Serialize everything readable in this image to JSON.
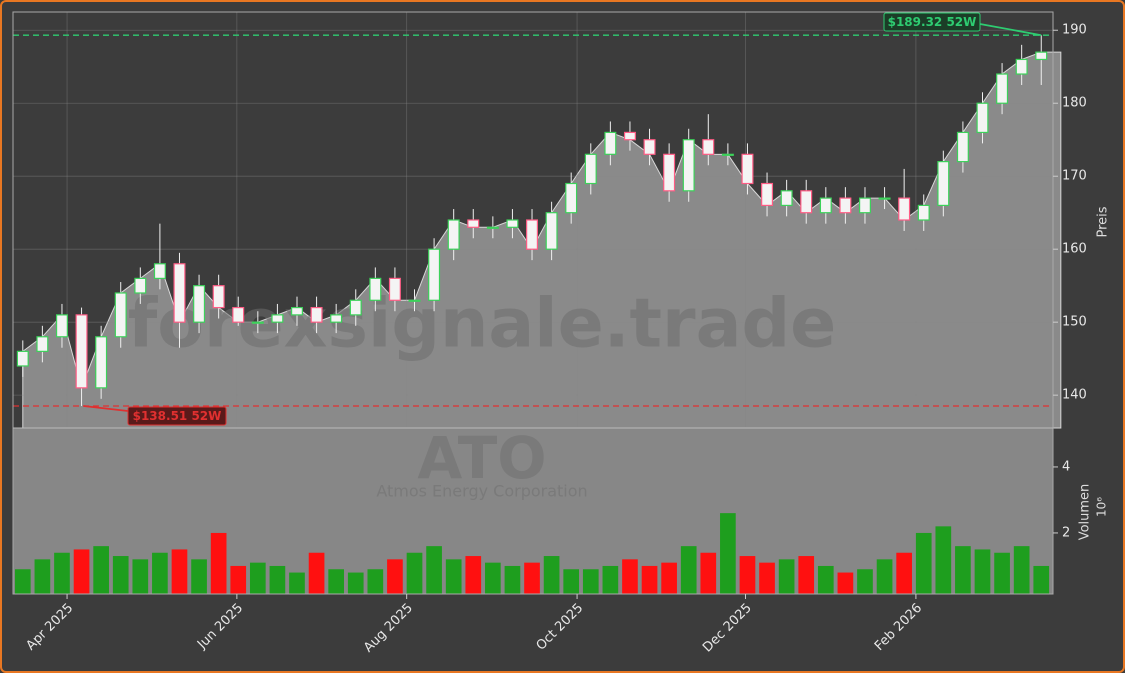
{
  "chart_data": {
    "type": "candlestick",
    "watermark": "forexsignale.trade",
    "symbol": "ATO",
    "company": "Atmos Energy Corporation",
    "ylabel": "Preis",
    "up_color": "#3cd25a",
    "down_color": "#ff5c85",
    "grid": true,
    "x": [
      0,
      1,
      2,
      3,
      4,
      5,
      6,
      7,
      8,
      9,
      10,
      11,
      12,
      13,
      14,
      15,
      16,
      17,
      18,
      19,
      20,
      21,
      22,
      23,
      24,
      25,
      26,
      27,
      28,
      29,
      30,
      31,
      32,
      33,
      34,
      35,
      36,
      37,
      38,
      39,
      40,
      41,
      42,
      43,
      44,
      45,
      46,
      47,
      48,
      49,
      50,
      51,
      52
    ],
    "xlim": [
      -0.5,
      52.6
    ],
    "xticks": [
      {
        "value": 2.26,
        "label": "Apr 2025"
      },
      {
        "value": 10.93,
        "label": "Jun 2025"
      },
      {
        "value": 19.6,
        "label": "Aug 2025"
      },
      {
        "value": 28.3,
        "label": "Oct 2025"
      },
      {
        "value": 36.9,
        "label": "Dec 2025"
      },
      {
        "value": 45.6,
        "label": "Feb 2026"
      }
    ],
    "open": [
      144,
      146,
      148,
      151,
      141,
      148,
      154,
      156,
      158,
      150,
      155,
      152,
      150,
      150,
      151,
      152,
      150,
      151,
      153,
      156,
      153,
      153,
      160,
      164,
      163,
      163,
      164,
      160,
      165,
      169,
      173,
      176,
      175,
      173,
      168,
      175,
      173,
      173,
      169,
      166,
      168,
      165,
      167,
      165,
      167,
      167,
      164,
      166,
      172,
      176,
      180,
      184,
      186
    ],
    "high": [
      147.5,
      149.5,
      152.5,
      152,
      149.5,
      155.5,
      157.5,
      163.5,
      159.5,
      156.5,
      156.5,
      153.5,
      151.5,
      152.5,
      153.5,
      153.5,
      152.5,
      154.5,
      157.5,
      157.5,
      154.5,
      161.5,
      165.5,
      165.5,
      164.5,
      165.5,
      165.5,
      166.5,
      170.5,
      174.5,
      177.5,
      177.5,
      176.5,
      174.5,
      176.5,
      178.5,
      174.5,
      174.5,
      170.5,
      169.5,
      169.5,
      168.5,
      168.5,
      168.5,
      168.5,
      171,
      167.5,
      173.5,
      177.5,
      181.5,
      185.5,
      188,
      189.32
    ],
    "low": [
      142.5,
      144.5,
      146.5,
      138.51,
      139.5,
      146.5,
      152.5,
      154.5,
      146.5,
      148.5,
      150.5,
      149.5,
      148.5,
      148.5,
      149.5,
      148.5,
      148.5,
      149.5,
      151.5,
      151.5,
      151.5,
      151.5,
      158.5,
      161.5,
      161.5,
      161.5,
      158.5,
      158.5,
      163.5,
      167.5,
      171.5,
      173.5,
      171.5,
      166.5,
      166.5,
      171.5,
      171.5,
      167.5,
      164.5,
      164.5,
      163.5,
      163.5,
      163.5,
      163.5,
      165.5,
      162.5,
      162.5,
      164.5,
      170.5,
      174.5,
      178.5,
      182.5,
      182.5
    ],
    "close": [
      146,
      148,
      151,
      141,
      148,
      154,
      156,
      158,
      150,
      155,
      152,
      150,
      150,
      151,
      152,
      150,
      151,
      153,
      156,
      153,
      153,
      160,
      164,
      163,
      163,
      164,
      160,
      165,
      169,
      173,
      176,
      175,
      173,
      168,
      175,
      173,
      173,
      169,
      166,
      168,
      165,
      167,
      165,
      167,
      167,
      164,
      166,
      172,
      176,
      180,
      184,
      186,
      187
    ],
    "ylim": [
      135.5,
      192.5
    ],
    "yticks": [
      140,
      150,
      160,
      170,
      180,
      190
    ],
    "high_52w": {
      "value": 189.32,
      "label": "$189.32 52W",
      "color": "#2ecc71"
    },
    "low_52w": {
      "value": 138.51,
      "label": "$138.51 52W",
      "color": "#e03030"
    },
    "volume": {
      "label": "Volumen",
      "scale": "10⁶",
      "up_color": "#1e9e1e",
      "down_color": "#ff1010",
      "values": [
        0.9,
        1.2,
        1.4,
        1.5,
        1.6,
        1.3,
        1.2,
        1.4,
        1.5,
        1.2,
        2.0,
        1.0,
        1.1,
        1.0,
        0.8,
        1.4,
        0.9,
        0.8,
        0.9,
        1.2,
        1.4,
        1.6,
        1.2,
        1.3,
        1.1,
        1.0,
        1.1,
        1.3,
        0.9,
        0.9,
        1.0,
        1.2,
        1.0,
        1.1,
        1.6,
        1.4,
        2.6,
        1.3,
        1.1,
        1.2,
        1.3,
        1.0,
        0.8,
        0.9,
        1.2,
        1.4,
        2.0,
        2.2,
        1.6,
        1.5,
        1.4,
        1.6,
        1.0
      ],
      "ylim": [
        0.15,
        5.18
      ],
      "yticks": [
        2,
        4
      ]
    }
  }
}
